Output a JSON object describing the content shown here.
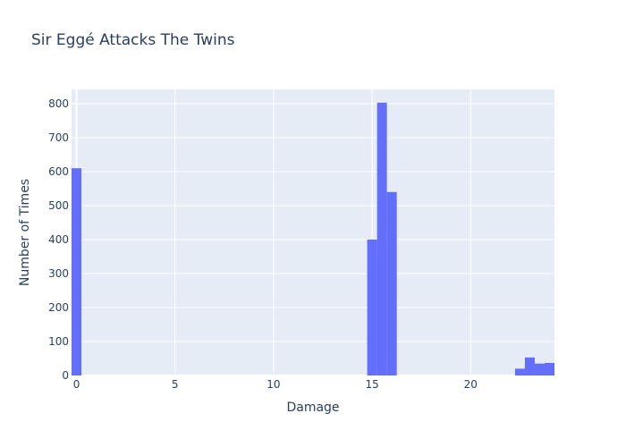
{
  "chart_data": {
    "type": "bar",
    "title": "Sir Eggé Attacks The Twins",
    "xlabel": "Damage",
    "ylabel": "Number of Times",
    "xlim": [
      -0.25,
      24.25
    ],
    "ylim": [
      0,
      842
    ],
    "bin_width": 0.5,
    "x_ticks": [
      0,
      5,
      10,
      15,
      20
    ],
    "y_ticks": [
      0,
      100,
      200,
      300,
      400,
      500,
      600,
      700,
      800
    ],
    "grid": true,
    "bar_color": "#636efa",
    "plot_background": "#e5ecf6",
    "bins": [
      {
        "x": 0,
        "value": 610
      },
      {
        "x": 15,
        "value": 400
      },
      {
        "x": 15.5,
        "value": 803
      },
      {
        "x": 16,
        "value": 540
      },
      {
        "x": 22.5,
        "value": 20
      },
      {
        "x": 23,
        "value": 53
      },
      {
        "x": 23.5,
        "value": 35
      },
      {
        "x": 24,
        "value": 37
      }
    ]
  }
}
